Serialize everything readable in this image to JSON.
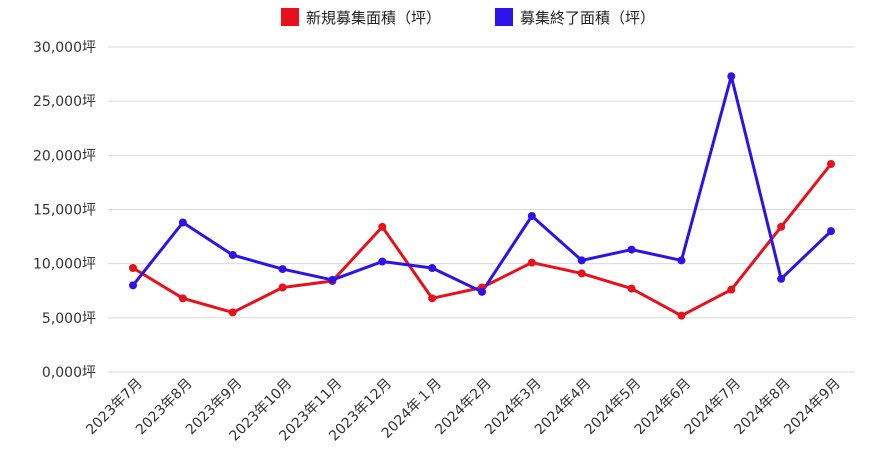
{
  "chart_data": {
    "type": "line",
    "title": "",
    "xlabel": "",
    "ylabel": "",
    "categories": [
      "2023年7月",
      "2023年8月",
      "2023年9月",
      "2023年10月",
      "2023年11月",
      "2023年12月",
      "2024年１月",
      "2024年2月",
      "2024年3月",
      "2024年4月",
      "2024年5月",
      "2024年6月",
      "2024年7月",
      "2024年8月",
      "2024年9月"
    ],
    "y_ticks": [
      0,
      5000,
      10000,
      15000,
      20000,
      25000,
      30000
    ],
    "y_tick_labels": [
      "0,000坪",
      "5,000坪",
      "10,000坪",
      "15,000坪",
      "20,000坪",
      "25,000坪",
      "30,000坪"
    ],
    "ylim": [
      0,
      30000
    ],
    "grid": true,
    "legend_position": "top-center",
    "series": [
      {
        "name": "新規募集面積（坪）",
        "color": "#e8101a",
        "values": [
          9600,
          6800,
          5500,
          7800,
          8400,
          13400,
          6800,
          7800,
          10100,
          9100,
          7700,
          5200,
          7600,
          13400,
          19200
        ]
      },
      {
        "name": "募集終了面積（坪）",
        "color": "#2c14e8",
        "values": [
          8000,
          13800,
          10800,
          9500,
          8500,
          10200,
          9600,
          7400,
          14400,
          10300,
          11300,
          10300,
          27300,
          8600,
          13000
        ]
      }
    ]
  }
}
